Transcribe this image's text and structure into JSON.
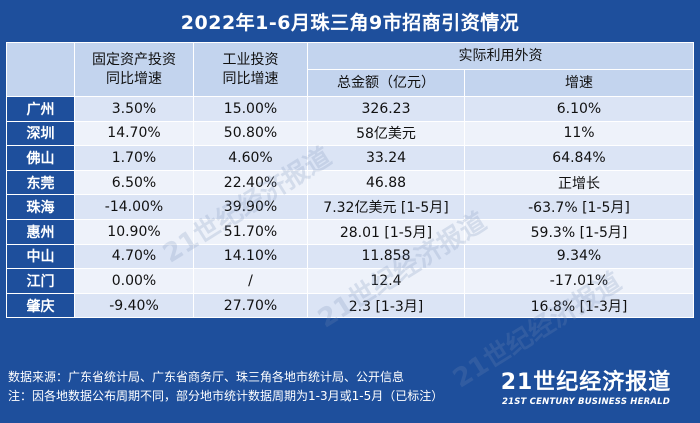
{
  "title": "2022年1-6月珠三角9市招商引资情况",
  "header": {
    "col_fixed_asset": "固定资产投资同比增速",
    "col_fixed_asset_l1": "固定资产投资",
    "col_fixed_asset_l2": "同比增速",
    "col_industrial_l1": "工业投资",
    "col_industrial_l2": "同比增速",
    "col_fdi": "实际利用外资",
    "col_fdi_total": "总金额（亿元）",
    "col_fdi_growth": "增速"
  },
  "rows": [
    {
      "city": "广州",
      "fixed": "3.50%",
      "industrial": "15.00%",
      "fdi_total": "326.23",
      "fdi_growth": "6.10%"
    },
    {
      "city": "深圳",
      "fixed": "14.70%",
      "industrial": "50.80%",
      "fdi_total": "58亿美元",
      "fdi_growth": "11%"
    },
    {
      "city": "佛山",
      "fixed": "1.70%",
      "industrial": "4.60%",
      "fdi_total": "33.24",
      "fdi_growth": "64.84%"
    },
    {
      "city": "东莞",
      "fixed": "6.50%",
      "industrial": "22.40%",
      "fdi_total": "46.88",
      "fdi_growth": "正增长"
    },
    {
      "city": "珠海",
      "fixed": "-14.00%",
      "industrial": "39.90%",
      "fdi_total": "7.32亿美元 [1-5月]",
      "fdi_growth": "-63.7% [1-5月]"
    },
    {
      "city": "惠州",
      "fixed": "10.90%",
      "industrial": "51.70%",
      "fdi_total": "28.01 [1-5月]",
      "fdi_growth": "59.3% [1-5月]"
    },
    {
      "city": "中山",
      "fixed": "4.70%",
      "industrial": "14.10%",
      "fdi_total": "11.858",
      "fdi_growth": "9.34%"
    },
    {
      "city": "江门",
      "fixed": "0.00%",
      "industrial": "/",
      "fdi_total": "12.4",
      "fdi_growth": "-17.01%"
    },
    {
      "city": "肇庆",
      "fixed": "-9.40%",
      "industrial": "27.70%",
      "fdi_total": "2.3 [1-3月]",
      "fdi_growth": "16.8% [1-3月]"
    }
  ],
  "footer": {
    "source": "数据来源：广东省统计局、广东省商务厅、珠三角各地市统计局、公开信息",
    "note": "注：因各地数据公布周期不同，部分地市统计数据周期为1-3月或1-5月（已标注）"
  },
  "logo": {
    "cn": "21世纪经济报道",
    "en": "21ST CENTURY BUSINESS HERALD"
  },
  "watermark": "21世纪经济报道",
  "colors": {
    "background": "#1e4f9c",
    "header_cell": "#c3d4ee",
    "row_odd": "#dbe4f5",
    "row_even": "#eef2fa"
  }
}
